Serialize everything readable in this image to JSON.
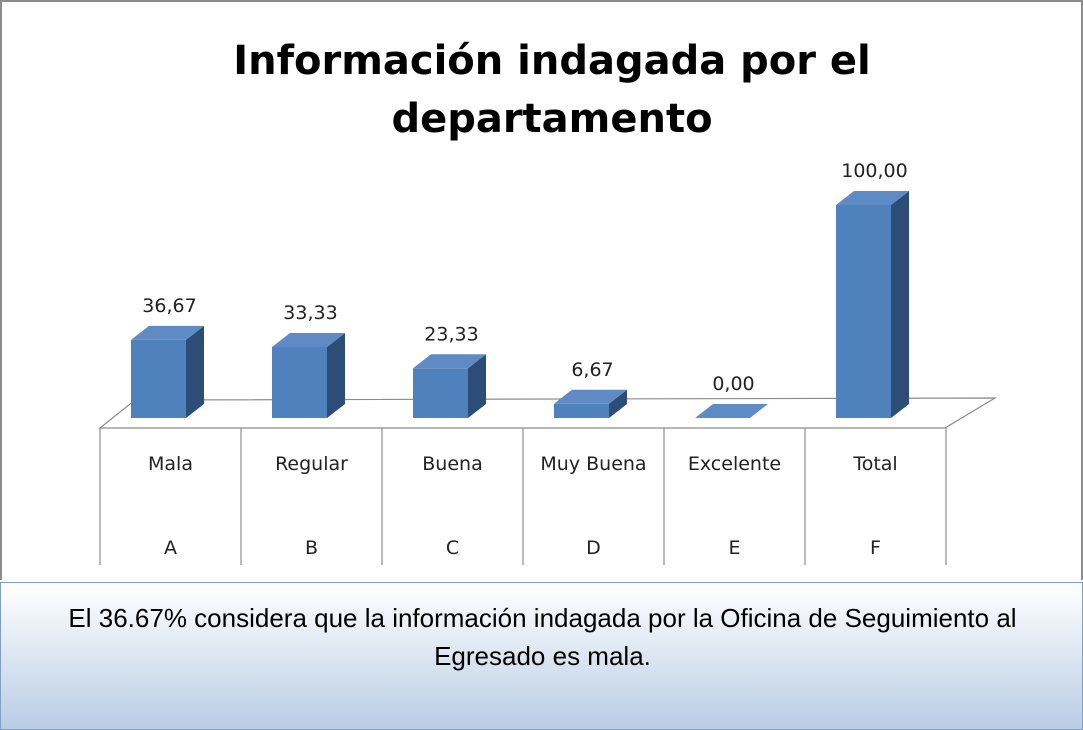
{
  "chart_data": {
    "type": "bar3d",
    "title": "Información indagada por el departamento",
    "categories": [
      "Mala",
      "Regular",
      "Buena",
      "Muy Buena",
      "Excelente",
      "Total"
    ],
    "category_codes": [
      "A",
      "B",
      "C",
      "D",
      "E",
      "F"
    ],
    "values": [
      36.67,
      33.33,
      23.33,
      6.67,
      0.0,
      100.0
    ],
    "value_labels": [
      "36,67",
      "33,33",
      "23,33",
      "6,67",
      "0,00",
      "100,00"
    ],
    "color": "#4f81bd"
  },
  "caption": "El 36.67% considera que la información indagada por la Oficina de Seguimiento al Egresado es mala."
}
